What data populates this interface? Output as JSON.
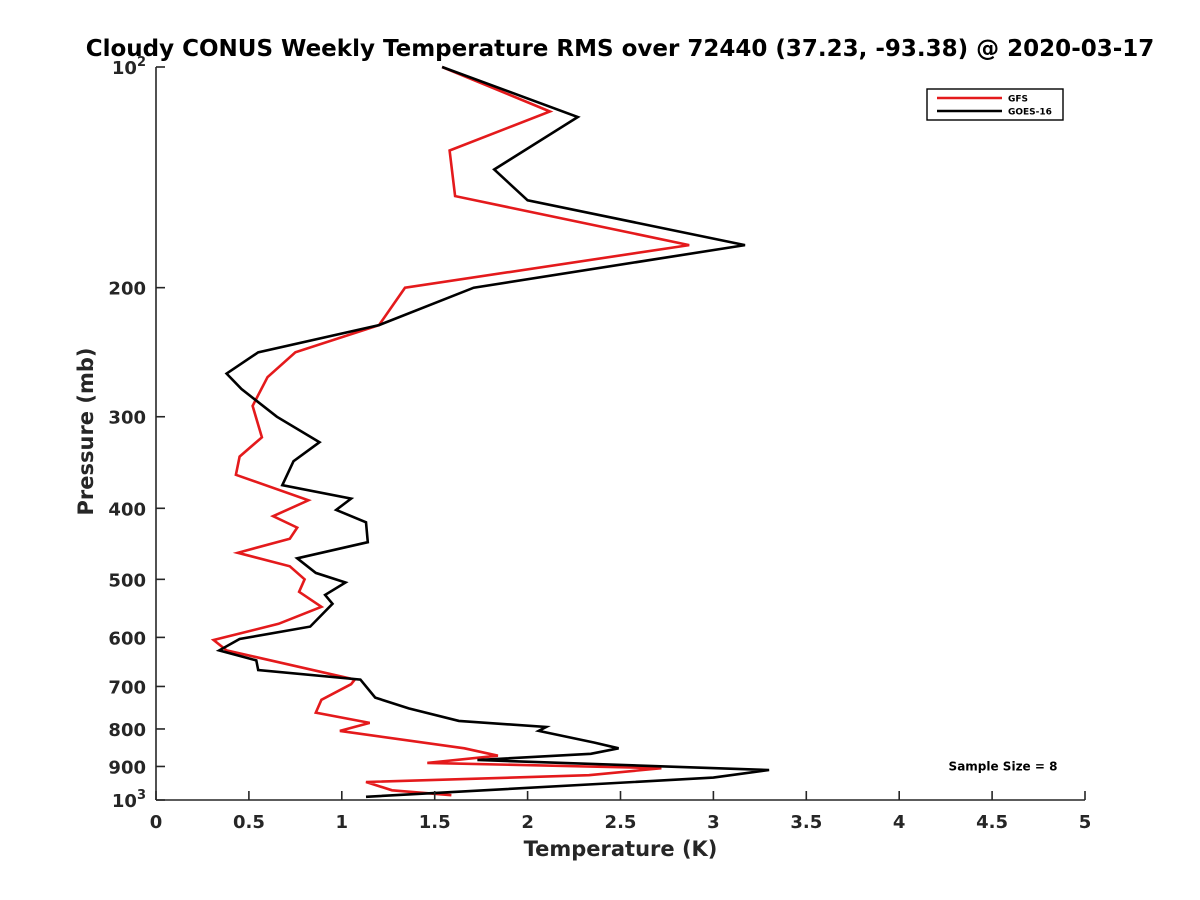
{
  "chart_data": {
    "type": "line",
    "title": "Cloudy CONUS Weekly Temperature RMS over 72440 (37.23, -93.38) @ 2020-03-17",
    "xlabel": "Temperature (K)",
    "ylabel": "Pressure (mb)",
    "xlim": [
      0,
      5
    ],
    "ylim": [
      100,
      1000
    ],
    "y_scale": "log",
    "y_reversed": true,
    "grid": false,
    "legend_position": "top-right",
    "x_ticks": [
      0,
      0.5,
      1,
      1.5,
      2,
      2.5,
      3,
      3.5,
      4,
      4.5,
      5
    ],
    "x_tick_labels": [
      "0",
      "0.5",
      "1",
      "1.5",
      "2",
      "2.5",
      "3",
      "3.5",
      "4",
      "4.5",
      "5"
    ],
    "y_ticks": [
      {
        "value": 100,
        "base": "10",
        "exp": "2"
      },
      {
        "value": 200,
        "label": "200"
      },
      {
        "value": 300,
        "label": "300"
      },
      {
        "value": 400,
        "label": "400"
      },
      {
        "value": 500,
        "label": "500"
      },
      {
        "value": 600,
        "label": "600"
      },
      {
        "value": 700,
        "label": "700"
      },
      {
        "value": 800,
        "label": "800"
      },
      {
        "value": 900,
        "label": "900"
      },
      {
        "value": 1000,
        "base": "10",
        "exp": "3"
      }
    ],
    "annotation": "Sample Size = 8",
    "series": [
      {
        "name": "GFS",
        "color": "#e41a1c",
        "points": [
          [
            1.54,
            100
          ],
          [
            2.12,
            115
          ],
          [
            1.58,
            130
          ],
          [
            1.61,
            150
          ],
          [
            2.87,
            175
          ],
          [
            1.34,
            200
          ],
          [
            1.2,
            225
          ],
          [
            0.75,
            245
          ],
          [
            0.6,
            265
          ],
          [
            0.52,
            290
          ],
          [
            0.57,
            320
          ],
          [
            0.45,
            340
          ],
          [
            0.43,
            360
          ],
          [
            0.82,
            390
          ],
          [
            0.63,
            410
          ],
          [
            0.76,
            425
          ],
          [
            0.72,
            440
          ],
          [
            0.44,
            460
          ],
          [
            0.72,
            480
          ],
          [
            0.8,
            500
          ],
          [
            0.77,
            520
          ],
          [
            0.89,
            545
          ],
          [
            0.66,
            575
          ],
          [
            0.31,
            605
          ],
          [
            0.38,
            625
          ],
          [
            1.07,
            685
          ],
          [
            1.05,
            695
          ],
          [
            0.89,
            730
          ],
          [
            0.86,
            760
          ],
          [
            1.15,
            785
          ],
          [
            0.99,
            805
          ],
          [
            1.66,
            850
          ],
          [
            1.84,
            870
          ],
          [
            1.46,
            890
          ],
          [
            2.72,
            905
          ],
          [
            2.33,
            925
          ],
          [
            1.13,
            945
          ],
          [
            1.27,
            970
          ],
          [
            1.59,
            985
          ]
        ]
      },
      {
        "name": "GOES-16",
        "color": "#000000",
        "points": [
          [
            1.54,
            100
          ],
          [
            2.27,
            117
          ],
          [
            1.82,
            138
          ],
          [
            2.0,
            152
          ],
          [
            3.17,
            175
          ],
          [
            1.71,
            200
          ],
          [
            1.2,
            225
          ],
          [
            0.55,
            245
          ],
          [
            0.38,
            262
          ],
          [
            0.46,
            275
          ],
          [
            0.65,
            300
          ],
          [
            0.88,
            325
          ],
          [
            0.74,
            345
          ],
          [
            0.68,
            372
          ],
          [
            1.05,
            388
          ],
          [
            0.97,
            402
          ],
          [
            1.13,
            418
          ],
          [
            1.14,
            445
          ],
          [
            0.76,
            468
          ],
          [
            0.86,
            490
          ],
          [
            1.02,
            505
          ],
          [
            0.91,
            525
          ],
          [
            0.95,
            540
          ],
          [
            0.83,
            580
          ],
          [
            0.45,
            603
          ],
          [
            0.34,
            625
          ],
          [
            0.54,
            645
          ],
          [
            0.55,
            665
          ],
          [
            1.1,
            685
          ],
          [
            1.18,
            725
          ],
          [
            1.36,
            750
          ],
          [
            1.63,
            780
          ],
          [
            2.1,
            795
          ],
          [
            2.06,
            805
          ],
          [
            2.36,
            835
          ],
          [
            2.49,
            850
          ],
          [
            2.34,
            865
          ],
          [
            1.73,
            882
          ],
          [
            3.3,
            910
          ],
          [
            3.0,
            932
          ],
          [
            1.13,
            990
          ]
        ]
      }
    ]
  }
}
